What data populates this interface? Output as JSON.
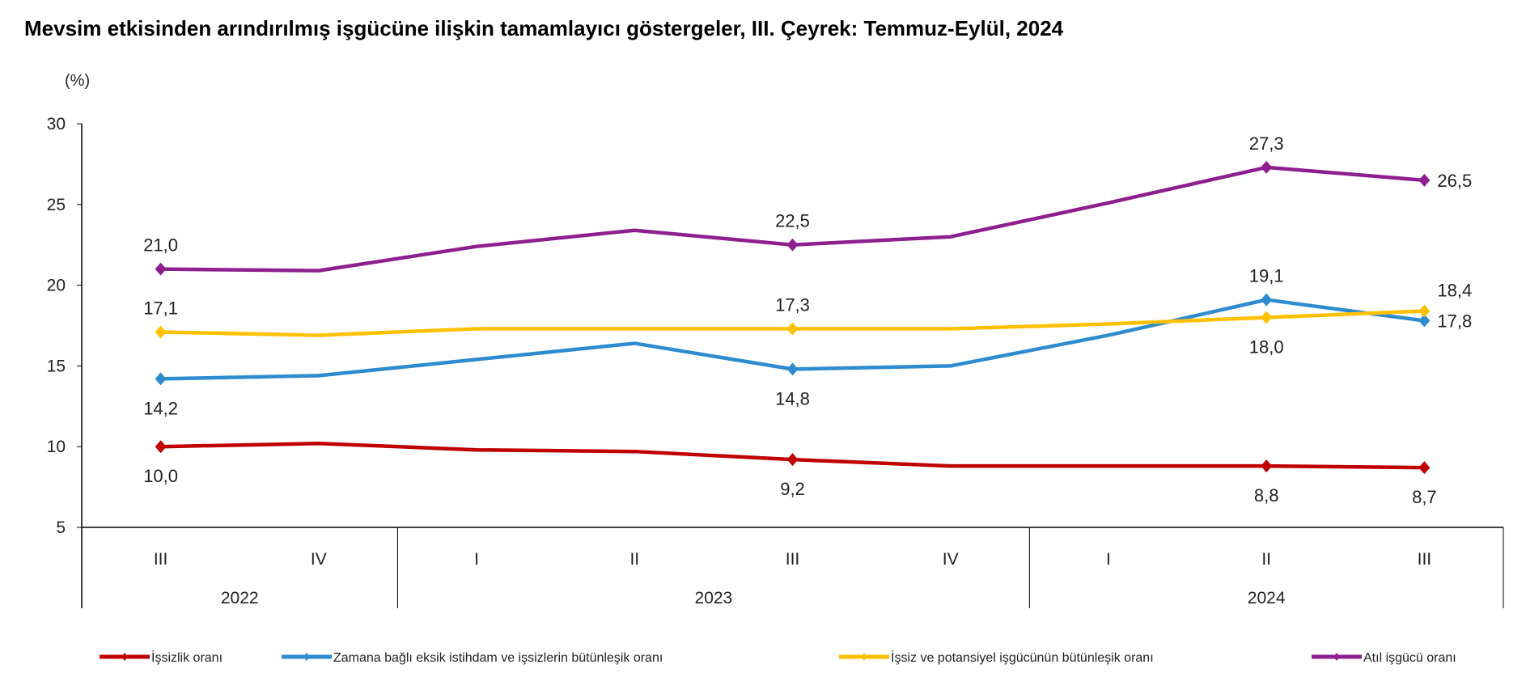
{
  "chart_data": {
    "type": "line",
    "title": "Mevsim etkisinden arındırılmış işgücüne ilişkin tamamlayıcı göstergeler, III. Çeyrek: Temmuz-Eylül, 2024",
    "ylabel": "(%)",
    "ylim": [
      5,
      30
    ],
    "yticks": [
      5,
      10,
      15,
      20,
      25,
      30
    ],
    "categories": [
      "III",
      "IV",
      "I",
      "II",
      "III",
      "IV",
      "I",
      "II",
      "III"
    ],
    "years": [
      {
        "label": "2022",
        "span": 2
      },
      {
        "label": "2023",
        "span": 4
      },
      {
        "label": "2024",
        "span": 3
      }
    ],
    "series": [
      {
        "name": "İşsizlik oranı",
        "color": "#C00000",
        "values": [
          10.0,
          10.2,
          9.8,
          9.7,
          9.2,
          8.8,
          8.8,
          8.8,
          8.7
        ],
        "labels": [
          {
            "i": 0,
            "text": "10,0",
            "pos": "below"
          },
          {
            "i": 4,
            "text": "9,2",
            "pos": "below"
          },
          {
            "i": 7,
            "text": "8,8",
            "pos": "below"
          },
          {
            "i": 8,
            "text": "8,7",
            "pos": "below"
          }
        ]
      },
      {
        "name": "Zamana bağlı eksik istihdam ve işsizlerin bütünleşik oranı",
        "color": "#2E8BD0",
        "values": [
          14.2,
          14.4,
          15.4,
          16.4,
          14.8,
          15.0,
          16.9,
          19.1,
          17.8
        ],
        "labels": [
          {
            "i": 0,
            "text": "14,2",
            "pos": "below"
          },
          {
            "i": 4,
            "text": "14,8",
            "pos": "below"
          },
          {
            "i": 7,
            "text": "19,1",
            "pos": "above"
          },
          {
            "i": 8,
            "text": "17,8",
            "pos": "right"
          }
        ]
      },
      {
        "name": "İşsiz ve potansiyel işgücünün bütünleşik oranı",
        "color": "#FFC000",
        "values": [
          17.1,
          16.9,
          17.3,
          17.3,
          17.3,
          17.3,
          17.6,
          18.0,
          18.4
        ],
        "labels": [
          {
            "i": 0,
            "text": "17,1",
            "pos": "above"
          },
          {
            "i": 4,
            "text": "17,3",
            "pos": "above"
          },
          {
            "i": 7,
            "text": "18,0",
            "pos": "below"
          },
          {
            "i": 8,
            "text": "18,4",
            "pos": "aboveright"
          }
        ]
      },
      {
        "name": "Atıl işgücü oranı",
        "color": "#8E1F8E",
        "values": [
          21.0,
          20.9,
          22.4,
          23.4,
          22.5,
          23.0,
          25.1,
          27.3,
          26.5
        ],
        "labels": [
          {
            "i": 0,
            "text": "21,0",
            "pos": "above"
          },
          {
            "i": 4,
            "text": "22,5",
            "pos": "above"
          },
          {
            "i": 7,
            "text": "27,3",
            "pos": "above"
          },
          {
            "i": 8,
            "text": "26,5",
            "pos": "right"
          }
        ]
      }
    ]
  }
}
